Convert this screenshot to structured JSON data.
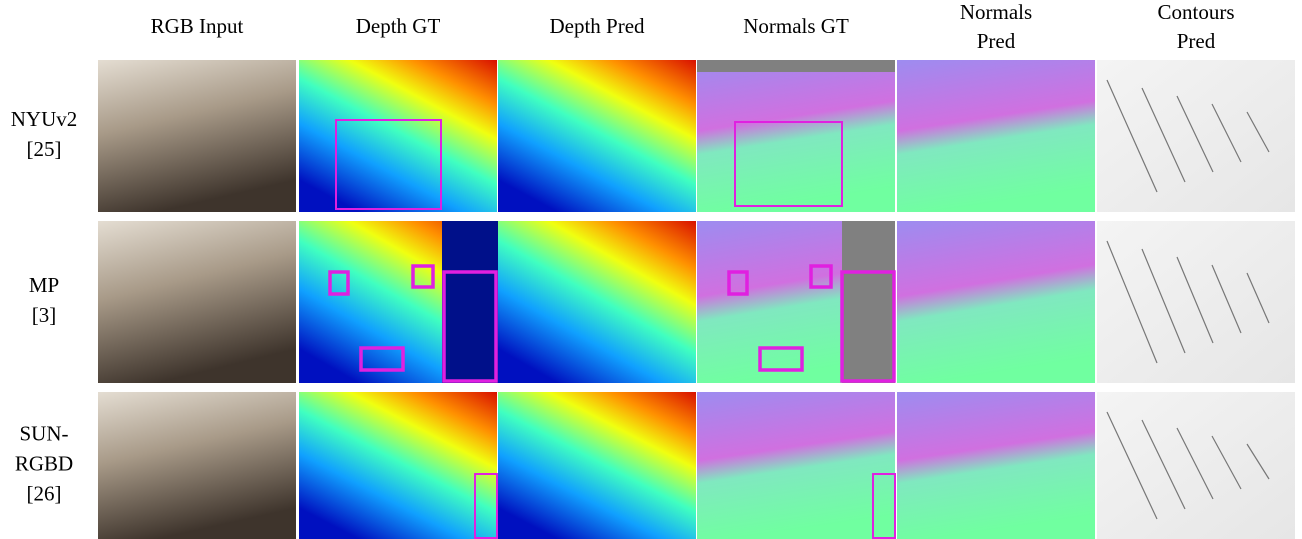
{
  "columns": [
    {
      "lines": [
        "RGB Input"
      ]
    },
    {
      "lines": [
        "Depth GT"
      ]
    },
    {
      "lines": [
        "Depth Pred"
      ]
    },
    {
      "lines": [
        "Normals GT"
      ]
    },
    {
      "lines": [
        "Normals",
        "Pred"
      ]
    },
    {
      "lines": [
        "Contours",
        "Pred"
      ]
    }
  ],
  "rows": [
    {
      "lines": [
        "NYUv2",
        "[25]"
      ]
    },
    {
      "lines": [
        "MP",
        "[3]"
      ]
    },
    {
      "lines": [
        "SUN-",
        "RGBD",
        "[26]"
      ]
    }
  ]
}
